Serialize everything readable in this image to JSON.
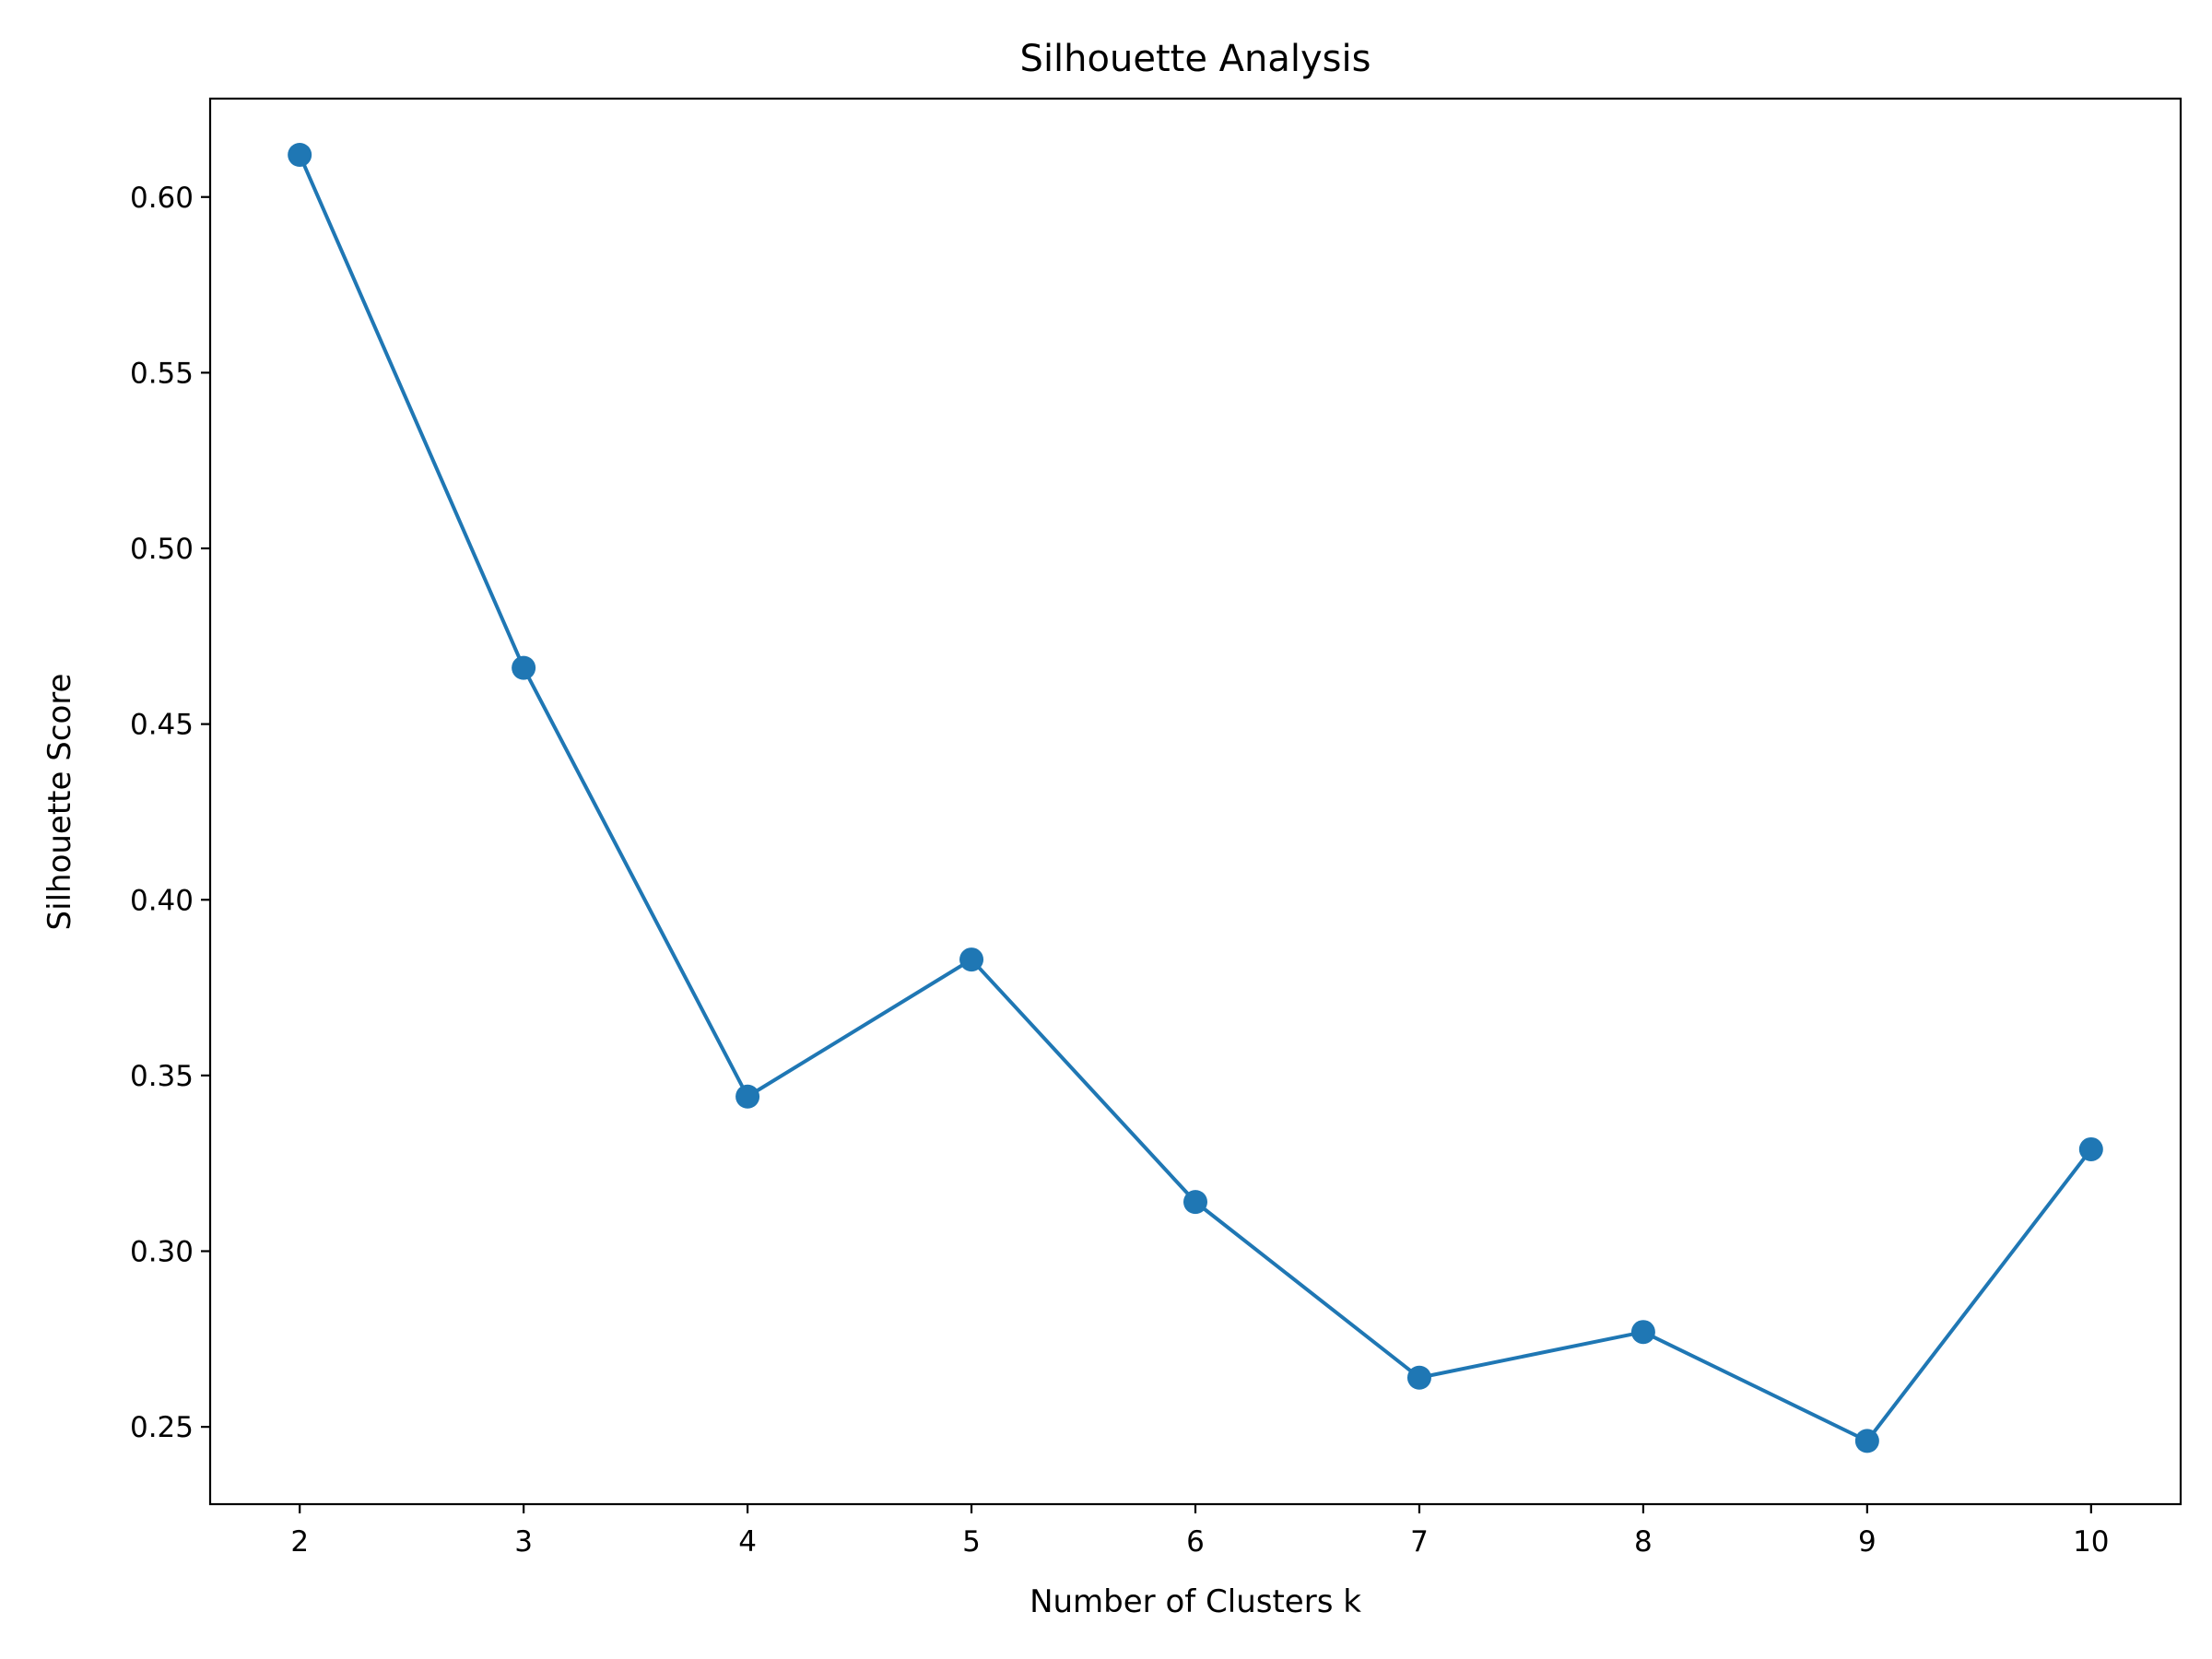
{
  "chart_data": {
    "type": "line",
    "title": "Silhouette Analysis",
    "xlabel": "Number of Clusters k",
    "ylabel": "Silhouette Score",
    "x": [
      2,
      3,
      4,
      5,
      6,
      7,
      8,
      9,
      10
    ],
    "series": [
      {
        "values": [
          0.612,
          0.466,
          0.344,
          0.383,
          0.314,
          0.264,
          0.277,
          0.246,
          0.329
        ],
        "color": "#1f77b4",
        "marker": "circle"
      }
    ],
    "xticks": [
      "2",
      "3",
      "4",
      "5",
      "6",
      "7",
      "8",
      "9",
      "10"
    ],
    "yticks": [
      "0.25",
      "0.30",
      "0.35",
      "0.40",
      "0.45",
      "0.50",
      "0.55",
      "0.60"
    ],
    "xlim": [
      1.6,
      10.4
    ],
    "ylim": [
      0.228,
      0.628
    ],
    "grid": false,
    "legend": "none"
  }
}
